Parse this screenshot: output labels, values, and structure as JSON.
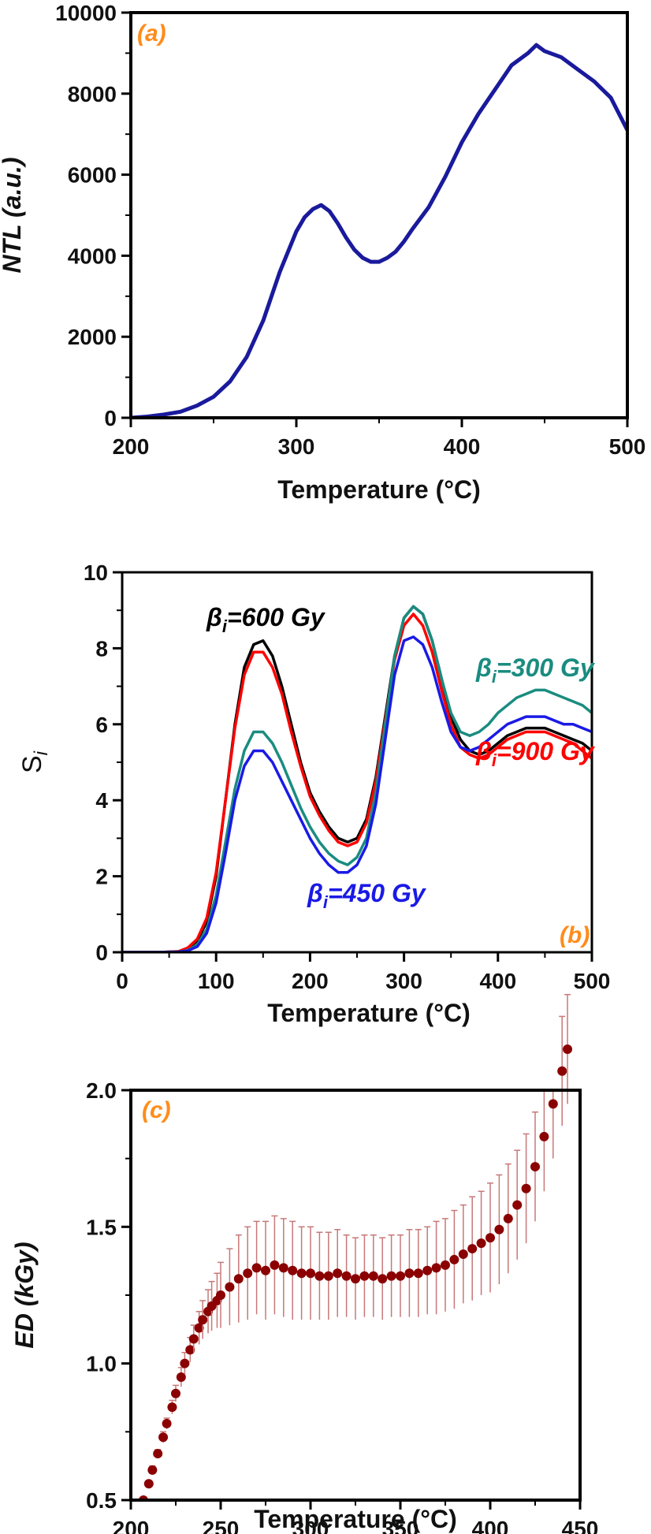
{
  "chart_data": [
    {
      "panel": "a",
      "type": "line",
      "panel_label": "(a)",
      "xlabel": "Temperature (°C)",
      "ylabel": "NTL (a.u.)",
      "xlim": [
        200,
        500
      ],
      "ylim": [
        0,
        10000
      ],
      "xticks": [
        200,
        300,
        400,
        500
      ],
      "yticks": [
        0,
        2000,
        4000,
        6000,
        8000,
        10000
      ],
      "grid": false,
      "colors": {
        "line": "#1a1a9c",
        "panel_label": "#ff8c1a"
      },
      "series": [
        {
          "x": [
            200,
            210,
            220,
            230,
            240,
            250,
            260,
            270,
            280,
            290,
            300,
            305,
            310,
            315,
            320,
            325,
            330,
            335,
            340,
            345,
            350,
            355,
            360,
            365,
            370,
            380,
            390,
            400,
            410,
            420,
            430,
            440,
            445,
            450,
            460,
            470,
            480,
            490,
            500
          ],
          "y": [
            0,
            30,
            80,
            150,
            300,
            520,
            900,
            1500,
            2400,
            3600,
            4600,
            4950,
            5150,
            5250,
            5100,
            4800,
            4450,
            4150,
            3950,
            3850,
            3850,
            3950,
            4100,
            4350,
            4650,
            5200,
            5950,
            6800,
            7500,
            8100,
            8700,
            9000,
            9200,
            9050,
            8900,
            8600,
            8300,
            7900,
            7100
          ]
        }
      ]
    },
    {
      "panel": "b",
      "type": "line",
      "panel_label": "(b)",
      "xlabel": "Temperature (°C)",
      "ylabel_main": "S",
      "ylabel_sub": "i",
      "xlim": [
        0,
        500
      ],
      "ylim": [
        0,
        10
      ],
      "xticks": [
        0,
        100,
        200,
        300,
        400,
        500
      ],
      "yticks": [
        0,
        2,
        4,
        6,
        8,
        10
      ],
      "grid": false,
      "x": [
        0,
        20,
        40,
        60,
        70,
        80,
        90,
        100,
        110,
        120,
        130,
        140,
        150,
        160,
        170,
        180,
        190,
        200,
        210,
        220,
        230,
        240,
        250,
        260,
        270,
        280,
        290,
        300,
        310,
        320,
        330,
        340,
        350,
        360,
        370,
        380,
        390,
        400,
        410,
        420,
        430,
        440,
        450,
        460,
        470,
        480,
        490,
        500
      ],
      "series": [
        {
          "beta": "600 Gy",
          "color": "#000000",
          "values": [
            0,
            0,
            0,
            0.02,
            0.1,
            0.3,
            0.8,
            2.0,
            4.0,
            6.0,
            7.5,
            8.1,
            8.2,
            7.8,
            7.0,
            6.0,
            5.0,
            4.2,
            3.7,
            3.3,
            3.0,
            2.9,
            3.0,
            3.5,
            4.6,
            6.2,
            7.8,
            8.8,
            9.1,
            8.9,
            8.2,
            7.2,
            6.2,
            5.6,
            5.3,
            5.2,
            5.3,
            5.5,
            5.7,
            5.8,
            5.9,
            5.9,
            5.9,
            5.8,
            5.7,
            5.6,
            5.5,
            5.3
          ]
        },
        {
          "beta": "900 Gy",
          "color": "#ff0000",
          "values": [
            0,
            0,
            0,
            0.02,
            0.12,
            0.35,
            0.9,
            2.1,
            4.0,
            5.9,
            7.3,
            7.9,
            7.9,
            7.5,
            6.8,
            5.8,
            4.9,
            4.1,
            3.6,
            3.2,
            2.9,
            2.8,
            2.9,
            3.4,
            4.5,
            6.1,
            7.7,
            8.6,
            8.9,
            8.6,
            7.9,
            6.9,
            6.0,
            5.4,
            5.2,
            5.1,
            5.2,
            5.4,
            5.6,
            5.7,
            5.8,
            5.8,
            5.8,
            5.7,
            5.6,
            5.5,
            5.3,
            5.1
          ]
        },
        {
          "beta": "300 Gy",
          "color": "#1a8c80",
          "values": [
            0,
            0,
            0,
            0.01,
            0.05,
            0.2,
            0.6,
            1.5,
            2.9,
            4.3,
            5.3,
            5.8,
            5.8,
            5.5,
            5.0,
            4.4,
            3.8,
            3.3,
            2.9,
            2.6,
            2.4,
            2.3,
            2.5,
            3.0,
            4.2,
            6.0,
            7.8,
            8.8,
            9.1,
            8.9,
            8.2,
            7.2,
            6.3,
            5.8,
            5.7,
            5.8,
            6.0,
            6.3,
            6.5,
            6.7,
            6.8,
            6.9,
            6.9,
            6.8,
            6.7,
            6.6,
            6.5,
            6.3
          ]
        },
        {
          "beta": "450 Gy",
          "color": "#1a1ae6",
          "values": [
            0,
            0,
            0,
            0.01,
            0.04,
            0.15,
            0.5,
            1.3,
            2.6,
            4.0,
            4.9,
            5.3,
            5.3,
            5.0,
            4.5,
            4.0,
            3.5,
            3.0,
            2.6,
            2.3,
            2.1,
            2.1,
            2.3,
            2.8,
            3.9,
            5.6,
            7.3,
            8.2,
            8.3,
            8.1,
            7.5,
            6.6,
            5.8,
            5.4,
            5.3,
            5.4,
            5.6,
            5.8,
            6.0,
            6.1,
            6.2,
            6.2,
            6.2,
            6.1,
            6.0,
            6.0,
            5.9,
            5.8
          ]
        }
      ],
      "annotations": [
        {
          "beta": "600 Gy",
          "sym": "β",
          "sub": "i",
          "text": "=600 Gy",
          "color": "#000000"
        },
        {
          "beta": "300 Gy",
          "sym": "β",
          "sub": "i",
          "text": "=300 Gy",
          "color": "#1a8c80"
        },
        {
          "beta": "900 Gy",
          "sym": "β",
          "sub": "i",
          "text": "=900 Gy",
          "color": "#ff0000"
        },
        {
          "beta": "450 Gy",
          "sym": "β",
          "sub": "i",
          "text": "=450 Gy",
          "color": "#1a1ae6"
        }
      ],
      "colors": {
        "panel_label": "#ff8c1a"
      }
    },
    {
      "panel": "c",
      "type": "scatter",
      "panel_label": "(c)",
      "xlabel": "Temperature (°C)",
      "ylabel": "ED (kGy)",
      "xlim": [
        200,
        450
      ],
      "ylim": [
        0.5,
        2.0
      ],
      "xticks": [
        200,
        250,
        300,
        350,
        400,
        450
      ],
      "yticks": [
        0.5,
        1.0,
        1.5,
        2.0
      ],
      "grid": false,
      "error_bars": true,
      "colors": {
        "marker": "#8b0000",
        "error": "#c87878",
        "panel_label": "#ff8c1a"
      },
      "points": [
        {
          "x": 205,
          "y": 0.45,
          "e": 0.01
        },
        {
          "x": 207,
          "y": 0.5,
          "e": 0.01
        },
        {
          "x": 210,
          "y": 0.56,
          "e": 0.01
        },
        {
          "x": 212,
          "y": 0.61,
          "e": 0.015
        },
        {
          "x": 215,
          "y": 0.67,
          "e": 0.015
        },
        {
          "x": 218,
          "y": 0.73,
          "e": 0.02
        },
        {
          "x": 220,
          "y": 0.78,
          "e": 0.02
        },
        {
          "x": 223,
          "y": 0.84,
          "e": 0.025
        },
        {
          "x": 225,
          "y": 0.89,
          "e": 0.03
        },
        {
          "x": 228,
          "y": 0.95,
          "e": 0.035
        },
        {
          "x": 230,
          "y": 1.0,
          "e": 0.04
        },
        {
          "x": 233,
          "y": 1.05,
          "e": 0.045
        },
        {
          "x": 235,
          "y": 1.09,
          "e": 0.05
        },
        {
          "x": 238,
          "y": 1.13,
          "e": 0.06
        },
        {
          "x": 240,
          "y": 1.16,
          "e": 0.07
        },
        {
          "x": 243,
          "y": 1.19,
          "e": 0.08
        },
        {
          "x": 245,
          "y": 1.21,
          "e": 0.09
        },
        {
          "x": 248,
          "y": 1.23,
          "e": 0.1
        },
        {
          "x": 250,
          "y": 1.25,
          "e": 0.12
        },
        {
          "x": 255,
          "y": 1.28,
          "e": 0.14
        },
        {
          "x": 260,
          "y": 1.31,
          "e": 0.16
        },
        {
          "x": 265,
          "y": 1.33,
          "e": 0.17
        },
        {
          "x": 270,
          "y": 1.35,
          "e": 0.17
        },
        {
          "x": 275,
          "y": 1.34,
          "e": 0.18
        },
        {
          "x": 280,
          "y": 1.36,
          "e": 0.18
        },
        {
          "x": 285,
          "y": 1.35,
          "e": 0.18
        },
        {
          "x": 290,
          "y": 1.34,
          "e": 0.18
        },
        {
          "x": 295,
          "y": 1.33,
          "e": 0.17
        },
        {
          "x": 300,
          "y": 1.33,
          "e": 0.17
        },
        {
          "x": 305,
          "y": 1.32,
          "e": 0.16
        },
        {
          "x": 310,
          "y": 1.32,
          "e": 0.16
        },
        {
          "x": 315,
          "y": 1.33,
          "e": 0.16
        },
        {
          "x": 320,
          "y": 1.32,
          "e": 0.15
        },
        {
          "x": 325,
          "y": 1.31,
          "e": 0.15
        },
        {
          "x": 330,
          "y": 1.32,
          "e": 0.15
        },
        {
          "x": 335,
          "y": 1.32,
          "e": 0.15
        },
        {
          "x": 340,
          "y": 1.31,
          "e": 0.15
        },
        {
          "x": 345,
          "y": 1.32,
          "e": 0.15
        },
        {
          "x": 350,
          "y": 1.32,
          "e": 0.15
        },
        {
          "x": 355,
          "y": 1.33,
          "e": 0.16
        },
        {
          "x": 360,
          "y": 1.33,
          "e": 0.16
        },
        {
          "x": 365,
          "y": 1.34,
          "e": 0.16
        },
        {
          "x": 370,
          "y": 1.35,
          "e": 0.17
        },
        {
          "x": 375,
          "y": 1.36,
          "e": 0.17
        },
        {
          "x": 380,
          "y": 1.38,
          "e": 0.18
        },
        {
          "x": 385,
          "y": 1.4,
          "e": 0.18
        },
        {
          "x": 390,
          "y": 1.42,
          "e": 0.19
        },
        {
          "x": 395,
          "y": 1.44,
          "e": 0.19
        },
        {
          "x": 400,
          "y": 1.46,
          "e": 0.2
        },
        {
          "x": 405,
          "y": 1.49,
          "e": 0.2
        },
        {
          "x": 410,
          "y": 1.53,
          "e": 0.2
        },
        {
          "x": 415,
          "y": 1.58,
          "e": 0.2
        },
        {
          "x": 420,
          "y": 1.64,
          "e": 0.2
        },
        {
          "x": 425,
          "y": 1.72,
          "e": 0.2
        },
        {
          "x": 430,
          "y": 1.83,
          "e": 0.2
        },
        {
          "x": 435,
          "y": 1.95,
          "e": 0.2
        },
        {
          "x": 440,
          "y": 2.07,
          "e": 0.2
        },
        {
          "x": 443,
          "y": 2.15,
          "e": 0.2
        }
      ]
    }
  ]
}
